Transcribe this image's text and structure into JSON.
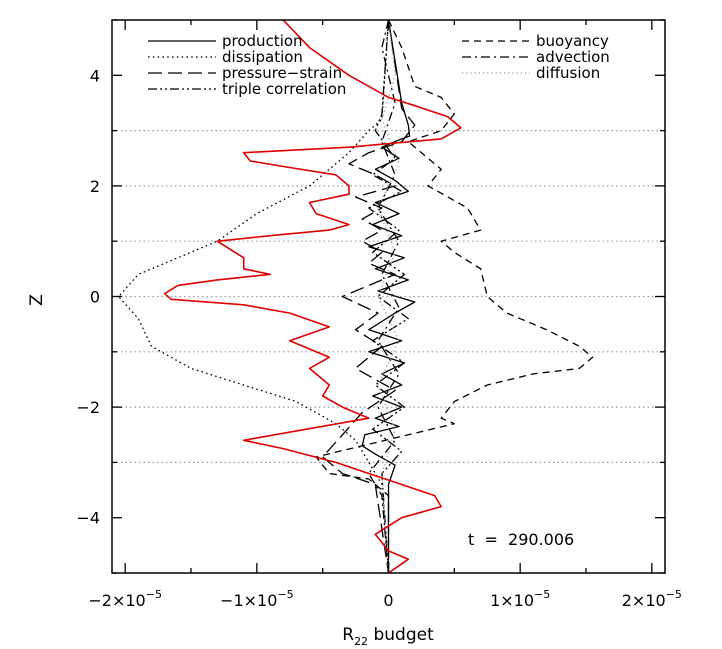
{
  "chart_data": {
    "type": "line",
    "xlabel": "R",
    "xlabel_sub": "22",
    "xlabel_suffix": " budget",
    "ylabel": "Z",
    "xlim": [
      -2.1e-05,
      2.1e-05
    ],
    "ylim": [
      -5,
      5
    ],
    "x_ticks": [
      {
        "value": -2e-05,
        "mant": "−2×10",
        "exp": "−5"
      },
      {
        "value": -1e-05,
        "mant": "−1×10",
        "exp": "−5"
      },
      {
        "value": 0,
        "mant": "0",
        "exp": ""
      },
      {
        "value": 1e-05,
        "mant": "1×10",
        "exp": "−5"
      },
      {
        "value": 2e-05,
        "mant": "2×10",
        "exp": "−5"
      }
    ],
    "y_ticks": [
      {
        "value": 4,
        "label": "4"
      },
      {
        "value": 2,
        "label": "2"
      },
      {
        "value": 0,
        "label": "0"
      },
      {
        "value": -2,
        "label": "−2"
      },
      {
        "value": -4,
        "label": "−4"
      }
    ],
    "hlines": [
      3,
      2,
      1,
      0,
      -1,
      -2,
      -3
    ],
    "annotation": "t  =  290.006",
    "legend_left": [
      "production",
      "dissipation",
      "pressure−strain",
      "triple correlation"
    ],
    "legend_right": [
      "buoyancy",
      "advection",
      "diffusion"
    ],
    "colors": {
      "red": "#e00000",
      "black": "#000000",
      "grid": "#999999"
    },
    "series": [
      {
        "name": "production",
        "style": "solid",
        "color": "#000000",
        "points": [
          [
            0,
            5
          ],
          [
            1e-06,
            3.5
          ],
          [
            1.5e-06,
            3.1
          ],
          [
            1.6e-06,
            2.9
          ],
          [
            1e-06,
            2.85
          ],
          [
            -5e-07,
            2.7
          ],
          [
            8e-07,
            2.5
          ],
          [
            -1e-06,
            2.3
          ],
          [
            5e-07,
            2.1
          ],
          [
            1.5e-06,
            1.9
          ],
          [
            -1e-06,
            1.7
          ],
          [
            8e-07,
            1.5
          ],
          [
            -1.2e-06,
            1.3
          ],
          [
            1e-06,
            1.1
          ],
          [
            -1.5e-06,
            0.9
          ],
          [
            1.2e-06,
            0.7
          ],
          [
            -1e-06,
            0.5
          ],
          [
            1.5e-06,
            0.3
          ],
          [
            -8e-07,
            0.1
          ],
          [
            2e-06,
            -0.1
          ],
          [
            5e-07,
            -0.3
          ],
          [
            -1.5e-06,
            -0.6
          ],
          [
            1e-06,
            -0.8
          ],
          [
            -1.5e-06,
            -1
          ],
          [
            1.2e-06,
            -1.2
          ],
          [
            -5e-07,
            -1.4
          ],
          [
            1e-06,
            -1.6
          ],
          [
            -1.2e-06,
            -1.8
          ],
          [
            1e-06,
            -2
          ],
          [
            -1e-06,
            -2.2
          ],
          [
            8e-07,
            -2.35
          ],
          [
            -1.8e-06,
            -2.5
          ],
          [
            -2e-06,
            -2.7
          ],
          [
            -1e-06,
            -2.85
          ],
          [
            5e-07,
            -3.05
          ],
          [
            0,
            -3.4
          ],
          [
            0,
            -5
          ]
        ]
      },
      {
        "name": "dissipation",
        "style": "dotted",
        "color": "#000000",
        "points": [
          [
            0,
            5
          ],
          [
            -5e-07,
            3.2
          ],
          [
            -1.5e-06,
            3
          ],
          [
            -3e-06,
            2.6
          ],
          [
            -6e-06,
            2
          ],
          [
            -1e-05,
            1.5
          ],
          [
            -1.3e-05,
            1
          ],
          [
            -1.6e-05,
            0.7
          ],
          [
            -1.9e-05,
            0.4
          ],
          [
            -2.05e-05,
            0
          ],
          [
            -1.9e-05,
            -0.4
          ],
          [
            -1.8e-05,
            -0.9
          ],
          [
            -1.5e-05,
            -1.3
          ],
          [
            -1.1e-05,
            -1.6
          ],
          [
            -7e-06,
            -1.9
          ],
          [
            -4e-06,
            -2.3
          ],
          [
            -2.5e-06,
            -2.6
          ],
          [
            -1.5e-06,
            -3
          ],
          [
            -5e-07,
            -3.4
          ],
          [
            0,
            -5
          ]
        ]
      },
      {
        "name": "pressure−strain",
        "style": "longdash",
        "color": "#000000",
        "points": [
          [
            0,
            5
          ],
          [
            1e-06,
            3.4
          ],
          [
            2e-06,
            3.1
          ],
          [
            1e-06,
            2.8
          ],
          [
            -1.5e-06,
            2.6
          ],
          [
            -3e-06,
            2.4
          ],
          [
            -1e-06,
            2.2
          ],
          [
            5e-07,
            2
          ],
          [
            -2.5e-06,
            1.8
          ],
          [
            -5e-07,
            1.6
          ],
          [
            -2e-06,
            1.4
          ],
          [
            -5e-07,
            1.2
          ],
          [
            -2e-06,
            1
          ],
          [
            -5e-07,
            0.8
          ],
          [
            -1.5e-06,
            0.6
          ],
          [
            5e-07,
            0.4
          ],
          [
            -1.5e-06,
            0.2
          ],
          [
            -3.5e-06,
            0
          ],
          [
            -8e-07,
            -0.3
          ],
          [
            -2.5e-06,
            -0.6
          ],
          [
            -5e-07,
            -0.9
          ],
          [
            -2.5e-06,
            -1.3
          ],
          [
            5e-07,
            -1.7
          ],
          [
            -2e-06,
            -2.1
          ],
          [
            -3.5e-06,
            -2.5
          ],
          [
            -5e-06,
            -2.9
          ],
          [
            -3.5e-06,
            -3.2
          ],
          [
            -1e-06,
            -3.4
          ],
          [
            0,
            -5
          ]
        ]
      },
      {
        "name": "triple correlation",
        "style": "dashdotdot",
        "color": "#000000",
        "points": [
          [
            0,
            5
          ],
          [
            -5e-07,
            3.3
          ],
          [
            -1e-06,
            3
          ],
          [
            5e-07,
            2.5
          ],
          [
            -1.2e-06,
            2.2
          ],
          [
            1e-06,
            1.9
          ],
          [
            -1.5e-06,
            1.6
          ],
          [
            8e-07,
            1.2
          ],
          [
            -1.2e-06,
            0.8
          ],
          [
            1.2e-06,
            0.4
          ],
          [
            -8e-07,
            0
          ],
          [
            1.5e-06,
            -0.4
          ],
          [
            -1.2e-06,
            -0.8
          ],
          [
            1.2e-06,
            -1.2
          ],
          [
            -1e-06,
            -1.6
          ],
          [
            1.2e-06,
            -2
          ],
          [
            -1.2e-06,
            -2.4
          ],
          [
            1e-06,
            -2.8
          ],
          [
            -5e-07,
            -3.2
          ],
          [
            0,
            -5
          ]
        ]
      },
      {
        "name": "buoyancy",
        "style": "dashed",
        "color": "#000000",
        "points": [
          [
            0,
            5
          ],
          [
            1e-06,
            4.5
          ],
          [
            2e-06,
            3.8
          ],
          [
            4e-06,
            3.6
          ],
          [
            5e-06,
            3.3
          ],
          [
            4e-06,
            3
          ],
          [
            1.5e-06,
            2.8
          ],
          [
            4e-06,
            2.3
          ],
          [
            3e-06,
            2
          ],
          [
            6e-06,
            1.6
          ],
          [
            7e-06,
            1.2
          ],
          [
            4e-06,
            1
          ],
          [
            5e-06,
            0.8
          ],
          [
            7e-06,
            0.5
          ],
          [
            7.5e-06,
            0
          ],
          [
            9e-06,
            -0.3
          ],
          [
            1.2e-05,
            -0.6
          ],
          [
            1.45e-05,
            -0.9
          ],
          [
            1.55e-05,
            -1.1
          ],
          [
            1.45e-05,
            -1.3
          ],
          [
            1.1e-05,
            -1.4
          ],
          [
            7.5e-06,
            -1.6
          ],
          [
            5e-06,
            -1.9
          ],
          [
            4e-06,
            -2.2
          ],
          [
            5e-06,
            -2.3
          ],
          [
            1.5e-06,
            -2.5
          ],
          [
            -2e-06,
            -2.7
          ],
          [
            -5.5e-06,
            -2.9
          ],
          [
            -4.5e-06,
            -3.2
          ],
          [
            -1.5e-06,
            -3.3
          ],
          [
            0,
            -3.6
          ],
          [
            0,
            -5
          ]
        ]
      },
      {
        "name": "advection",
        "style": "dashdot",
        "color": "#000000",
        "points": [
          [
            0,
            5
          ],
          [
            -5e-07,
            4.5
          ],
          [
            5e-07,
            3.5
          ],
          [
            -5e-07,
            2.8
          ],
          [
            5e-07,
            2.2
          ],
          [
            -8e-07,
            1.6
          ],
          [
            8e-07,
            1
          ],
          [
            -5e-07,
            0.4
          ],
          [
            8e-07,
            -0.2
          ],
          [
            -8e-07,
            -0.8
          ],
          [
            8e-07,
            -1.4
          ],
          [
            -8e-07,
            -2
          ],
          [
            5e-07,
            -2.6
          ],
          [
            -1.5e-06,
            -3.2
          ],
          [
            -5e-07,
            -3.6
          ],
          [
            0,
            -5
          ]
        ]
      },
      {
        "name": "diffusion",
        "style": "sparse",
        "color": "#999999",
        "points": [
          [
            0,
            5
          ],
          [
            5e-07,
            4
          ],
          [
            -5e-07,
            3.2
          ],
          [
            8e-07,
            2.4
          ],
          [
            -8e-07,
            1.6
          ],
          [
            5e-07,
            0.8
          ],
          [
            -8e-07,
            0
          ],
          [
            8e-07,
            -0.8
          ],
          [
            -8e-07,
            -1.6
          ],
          [
            5e-07,
            -2.4
          ],
          [
            -5e-07,
            -3.2
          ],
          [
            0,
            -5
          ]
        ]
      },
      {
        "name": "",
        "style": "solid",
        "color": "#e00000",
        "points": [
          [
            -8e-06,
            5
          ],
          [
            -6e-06,
            4.5
          ],
          [
            -3e-06,
            4
          ],
          [
            0,
            3.6
          ],
          [
            2e-06,
            3.45
          ],
          [
            4.5e-06,
            3.25
          ],
          [
            5.5e-06,
            3.05
          ],
          [
            4e-06,
            2.85
          ],
          [
            -3e-06,
            2.7
          ],
          [
            -1.1e-05,
            2.6
          ],
          [
            -1.05e-05,
            2.45
          ],
          [
            -8e-06,
            2.35
          ],
          [
            -4e-06,
            2.2
          ],
          [
            -3e-06,
            2
          ],
          [
            -3e-06,
            1.85
          ],
          [
            -6e-06,
            1.7
          ],
          [
            -5.5e-06,
            1.5
          ],
          [
            -3e-06,
            1.3
          ],
          [
            -4.5e-06,
            1.2
          ],
          [
            -9e-06,
            1.1
          ],
          [
            -1.3e-05,
            1
          ],
          [
            -1.1e-05,
            0.7
          ],
          [
            -1.1e-05,
            0.5
          ],
          [
            -9e-06,
            0.4
          ],
          [
            -1.3e-05,
            0.3
          ],
          [
            -1.6e-05,
            0.2
          ],
          [
            -1.7e-05,
            0.05
          ],
          [
            -1.65e-05,
            -0.05
          ],
          [
            -1.1e-05,
            -0.15
          ],
          [
            -7.5e-06,
            -0.3
          ],
          [
            -4.5e-06,
            -0.55
          ],
          [
            -7.5e-06,
            -0.8
          ],
          [
            -4.5e-06,
            -1.1
          ],
          [
            -6e-06,
            -1.3
          ],
          [
            -4.5e-06,
            -1.6
          ],
          [
            -5e-06,
            -1.8
          ],
          [
            -3.5e-06,
            -2
          ],
          [
            -1.5e-06,
            -2.2
          ],
          [
            -1.1e-05,
            -2.6
          ],
          [
            -8e-06,
            -2.75
          ],
          [
            -4e-06,
            -3
          ],
          [
            -1.5e-06,
            -3.2
          ],
          [
            1e-06,
            -3.4
          ],
          [
            3.5e-06,
            -3.6
          ],
          [
            4e-06,
            -3.8
          ],
          [
            1e-06,
            -4
          ],
          [
            -1e-06,
            -4.3
          ],
          [
            0,
            -4.6
          ],
          [
            1.5e-06,
            -4.75
          ],
          [
            0,
            -5
          ]
        ]
      }
    ]
  }
}
